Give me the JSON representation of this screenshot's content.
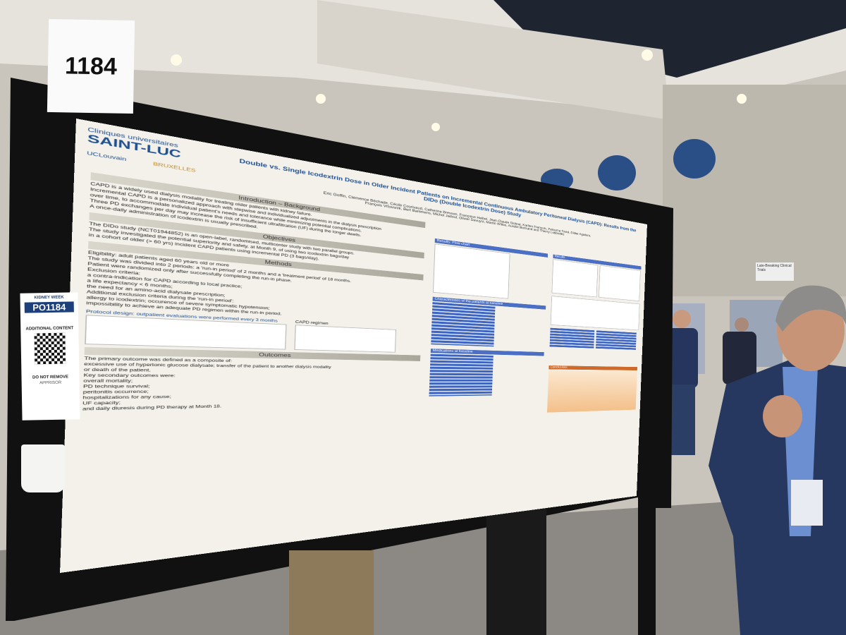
{
  "sign": "1184",
  "poster": {
    "logo": {
      "line1": "Cliniques universitaires",
      "line2": "SAINT-LUC",
      "line3": "UCLouvain",
      "line4": "BRUXELLES"
    },
    "title": "Double vs. Single Icodextrin Dose in Older Incident Patients on Incremental Continuous Ambulatory Peritoneal Dialysis (CAPD): Results from the DIDo (Double Icodextrin Dose) Study",
    "authors": [
      "Eric Goffin, Clémence Béchade, Cécile Courivaud, Catherine Bresson, Françoise Heibel, Jean-Claude Stolear, Karlien François, Fatouma Touré, Didier Aguilera,",
      "François Vrtovsnik, Bert Bammens, Michel Jadoul, Olivier Devuyst, Martin Wilkie, Aurélie Bertrand and Thierry Lobbedez"
    ],
    "sections": [
      {
        "heading": "Introduction – Background",
        "lines": [
          "CAPD is a widely used dialysis modality for treating older patients with kidney failure.",
          "Incremental CAPD is a personalized approach with stepwise and individualized adjustments in the dialysis prescription",
          "over time, to accommodate individual patient's needs and tolerance while minimizing potential complications.",
          "Three PD exchanges per day may increase the risk of insufficient ultrafiltration (UF) during the longer dwells.",
          "A once-daily administration of icodextrin is usually prescribed."
        ]
      },
      {
        "heading": "Objectives",
        "lines": [
          "The DIDo study (NCT01944852) is an open-label, randomised, multicenter study with two parallel groups.",
          "The study investigated the potential superiority and safety, at Month 9, of using two icodextrin bags/day",
          "in a cohort of older (> 60 yrs) incident CAPD patients using incremental PD (3 bags/day)."
        ]
      },
      {
        "heading": "Methods",
        "lines": [
          "Eligibility: adult patients aged 60 years old or more",
          "The study was divided into 2 periods: a 'run-in period' of 2 months and a 'treatment period' of 18 months.",
          "Patient were randomized only after successfully completing the run-in phase.",
          "Exclusion criteria:",
          "a contra-indication for CAPD according to local practice;",
          "a life expectancy < 6 months;",
          "the need for an amino-acid dialysate prescription;",
          "Additional exclusion criteria during the 'run-in period':",
          "allergy to icodextrin; occurence of severe symptomatic hypotension;",
          "impossibility to achieve an adequate PD regimen within the run-in period."
        ]
      },
      {
        "heading": "Outcomes",
        "lines": [
          "The primary outcome was defined as a composite of:",
          "excessive use of hypertonic glucose dialysate; transfer of the patient to another dialysis modality",
          "or death of the patient.",
          "Key secondary outcomes were:",
          "overall mortality;",
          "PD technique survival;",
          "peritonitis occurrence;",
          "hospitalizations for any cause;",
          "UF capacity;",
          "and daily diuresis during PD therapy at Month 18."
        ]
      }
    ],
    "protocol": "Protocol design: outpatient evaluations were performed every 3 months",
    "regimen": "CAPD regimen",
    "results_heading": "Results",
    "result_boxes": [
      "Results: Flow chart",
      "Characteristics of the patients at baseline",
      "Medications at baseline"
    ],
    "conclusions_heading": "Conclusions"
  },
  "tag": {
    "event": "KIDNEY WEEK",
    "code": "PO1184",
    "note": "ADDITIONAL CONTENT",
    "warning": "DO NOT REMOVE",
    "sponsor": "APPRISOR"
  },
  "side_sign": "Late-Breaking Clinical Trials"
}
